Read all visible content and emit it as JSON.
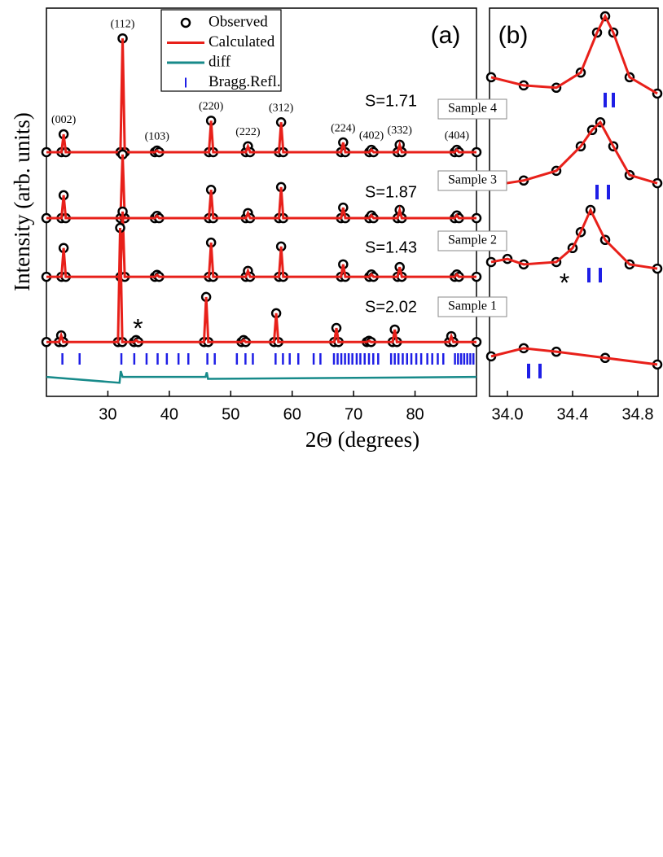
{
  "chart_data": [
    {
      "type": "xrd",
      "panel_label": "(a)",
      "x_label": "2Θ (degrees)",
      "y_label": "Intensity (arb. units)",
      "xlim": [
        20,
        90
      ],
      "xticks": [
        30,
        40,
        50,
        60,
        70,
        80
      ],
      "ylim": [
        0,
        100
      ],
      "legend": [
        {
          "name": "Observed",
          "color": "#000000"
        },
        {
          "name": "Calculated",
          "color": "#e8201a"
        },
        {
          "name": "diff",
          "color": "#178a8a"
        },
        {
          "name": "Bragg.Refl.",
          "color": "#1e1ee6"
        }
      ],
      "reflections": [
        {
          "label": "(002)",
          "x": 22.8
        },
        {
          "label": "(112)",
          "x": 32.4
        },
        {
          "label": "(103)",
          "x": 38.0
        },
        {
          "label": "(220)",
          "x": 46.8
        },
        {
          "label": "(222)",
          "x": 52.8
        },
        {
          "label": "(312)",
          "x": 58.2
        },
        {
          "label": "(224)",
          "x": 68.3
        },
        {
          "label": "(402)",
          "x": 72.9
        },
        {
          "label": "(332)",
          "x": 77.5
        },
        {
          "label": "(404)",
          "x": 86.8
        }
      ],
      "patterns": [
        {
          "label": "S=1.71",
          "x": [
            20,
            22.45,
            22.8,
            23.15,
            32.05,
            32.4,
            32.75,
            37.65,
            38.0,
            38.35,
            46.45,
            46.8,
            47.15,
            52.45,
            52.8,
            53.15,
            57.85,
            58.2,
            58.55,
            67.95,
            68.3,
            68.65,
            72.55,
            72.9,
            73.25,
            77.15,
            77.5,
            77.85,
            86.45,
            86.8,
            87.15,
            90
          ],
          "values": [
            62.9,
            62.9,
            67.5,
            62.9,
            62.9,
            92.2,
            62.9,
            62.9,
            63.3,
            62.9,
            62.9,
            71.0,
            62.9,
            62.9,
            64.4,
            62.9,
            62.9,
            70.6,
            62.9,
            62.9,
            65.4,
            62.9,
            62.9,
            63.5,
            62.9,
            62.9,
            64.8,
            62.9,
            62.9,
            63.5,
            62.9,
            62.9
          ]
        },
        {
          "label": "S=1.87",
          "x": [
            20,
            22.45,
            22.8,
            23.15,
            32.05,
            32.4,
            32.75,
            37.65,
            38.0,
            38.35,
            46.45,
            46.8,
            47.15,
            52.45,
            52.8,
            53.15,
            57.85,
            58.2,
            58.55,
            67.95,
            68.3,
            68.65,
            72.55,
            72.9,
            73.25,
            77.15,
            77.5,
            77.85,
            86.45,
            86.8,
            87.15,
            90
          ],
          "values": [
            45.9,
            45.9,
            51.8,
            45.9,
            45.9,
            62.3,
            45.9,
            45.9,
            46.5,
            45.9,
            45.9,
            53.2,
            45.9,
            45.9,
            47.2,
            45.9,
            45.9,
            53.9,
            45.9,
            45.9,
            48.6,
            45.9,
            45.9,
            46.6,
            45.9,
            45.9,
            48.0,
            45.9,
            45.9,
            46.6,
            45.9,
            45.9
          ]
        },
        {
          "label": "S=1.43",
          "x": [
            20,
            22.45,
            22.8,
            23.15,
            32.05,
            32.4,
            32.75,
            37.65,
            38.0,
            38.35,
            46.45,
            46.8,
            47.15,
            52.45,
            52.8,
            53.15,
            57.85,
            58.2,
            58.55,
            67.95,
            68.3,
            68.65,
            72.55,
            72.9,
            73.25,
            77.15,
            77.5,
            77.85,
            86.45,
            86.8,
            87.15,
            90
          ],
          "values": [
            30.8,
            30.8,
            38.2,
            30.8,
            30.8,
            47.6,
            30.8,
            30.8,
            31.3,
            30.8,
            30.8,
            39.6,
            30.8,
            30.8,
            32.3,
            30.8,
            30.8,
            38.6,
            30.8,
            30.8,
            34.0,
            30.8,
            30.8,
            31.4,
            30.8,
            30.8,
            33.3,
            30.8,
            30.8,
            31.4,
            30.8,
            30.8
          ]
        },
        {
          "label": "S=2.02",
          "x": [
            20,
            22.05,
            22.4,
            22.75,
            31.65,
            32.0,
            32.35,
            34.25,
            34.6,
            34.95,
            45.65,
            46.0,
            46.35,
            51.75,
            52.1,
            52.45,
            57.05,
            57.4,
            57.75,
            66.85,
            67.2,
            67.55,
            72.15,
            72.5,
            72.85,
            76.35,
            76.7,
            77.05,
            85.55,
            85.9,
            86.25,
            90
          ],
          "values": [
            14.0,
            14.0,
            15.7,
            14.0,
            14.0,
            43.4,
            14.0,
            14.0,
            14.5,
            14.0,
            14.0,
            25.6,
            14.0,
            14.0,
            14.5,
            14.0,
            14.0,
            21.4,
            14.0,
            14.0,
            17.6,
            14.0,
            14.0,
            14.3,
            14.0,
            14.0,
            17.2,
            14.0,
            14.0,
            15.5,
            14.0,
            14.0
          ]
        }
      ],
      "diff": {
        "x": [
          20,
          31.9,
          32.1,
          32.4,
          45.9,
          46.1,
          46.3,
          90
        ],
        "values": [
          5,
          3.5,
          6.5,
          5,
          5,
          6.2,
          4.5,
          5
        ]
      },
      "bragg": [
        22.6,
        25.4,
        32.2,
        34.3,
        36.3,
        38.1,
        39.6,
        41.5,
        43.1,
        46.2,
        47.4,
        51.0,
        52.4,
        53.6,
        57.3,
        58.5,
        59.6,
        61.0,
        63.5,
        64.6,
        66.8,
        67.4,
        68.0,
        68.6,
        69.2,
        69.8,
        70.5,
        71.1,
        71.8,
        72.5,
        73.2,
        74.0,
        76.1,
        76.7,
        77.3,
        78.0,
        78.7,
        79.4,
        80.2,
        81.0,
        82.0,
        82.8,
        83.7,
        84.6,
        86.5,
        87.0,
        87.5,
        88.0,
        88.5,
        89.0,
        89.5
      ],
      "annotations": [
        {
          "text": "*",
          "x": 34.9,
          "y": 17
        }
      ]
    },
    {
      "type": "xrd",
      "panel_label": "(b)",
      "xlim": [
        33.89,
        34.925
      ],
      "xticks": [
        {
          "value": 34.0,
          "label": "34.0"
        },
        34.4,
        34.8
      ],
      "ylim": [
        0,
        100
      ],
      "patterns": [
        {
          "label": "Sample 4",
          "x": [
            33.9,
            34.1,
            34.3,
            34.45,
            34.55,
            34.6,
            34.65,
            34.75,
            34.92
          ],
          "values": [
            82.2,
            80.1,
            79.5,
            83.4,
            93.7,
            97.9,
            93.7,
            82.2,
            78.0
          ],
          "bragg": [
            34.6,
            34.65
          ]
        },
        {
          "label": "Sample 3",
          "x": [
            33.9,
            34.1,
            34.3,
            34.45,
            34.52,
            34.57,
            34.65,
            34.75,
            34.92
          ],
          "values": [
            54.3,
            55.6,
            58.1,
            64.4,
            68.6,
            70.6,
            64.4,
            57.0,
            54.9
          ],
          "bragg": [
            34.55,
            34.62
          ]
        },
        {
          "label": "Sample 2",
          "x": [
            33.9,
            34.0,
            34.1,
            34.3,
            34.4,
            34.45,
            34.51,
            34.6,
            34.75,
            34.92
          ],
          "values": [
            34.6,
            35.4,
            34.0,
            34.6,
            38.2,
            42.3,
            48.0,
            40.3,
            34.0,
            32.9
          ],
          "bragg": [
            34.5,
            34.57
          ]
        },
        {
          "label": "Sample 1",
          "x": [
            33.9,
            34.1,
            34.3,
            34.6,
            34.92
          ],
          "values": [
            10.3,
            12.4,
            11.5,
            9.9,
            8.2
          ],
          "bragg": [
            34.13,
            34.2
          ]
        }
      ],
      "annotations": [
        {
          "text": "*",
          "x": 34.35,
          "y": 28.7
        }
      ]
    }
  ]
}
